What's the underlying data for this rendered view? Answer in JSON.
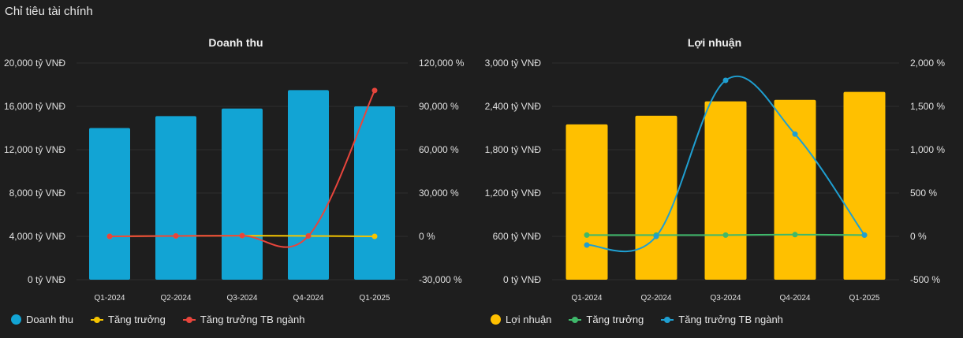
{
  "page": {
    "title": "Chỉ tiêu tài chính"
  },
  "charts": [
    {
      "title": "Doanh thu",
      "legend": [
        {
          "label": "Doanh thu",
          "kind": "dot",
          "color": "#12a4d4"
        },
        {
          "label": "Tăng trưởng",
          "kind": "line",
          "color": "#f5c400"
        },
        {
          "label": "Tăng trưởng TB ngành",
          "kind": "line",
          "color": "#e8453c"
        }
      ]
    },
    {
      "title": "Lợi nhuận",
      "legend": [
        {
          "label": "Lợi nhuận",
          "kind": "dot",
          "color": "#ffc000"
        },
        {
          "label": "Tăng trưởng",
          "kind": "line",
          "color": "#3fb86b"
        },
        {
          "label": "Tăng trưởng TB ngành",
          "kind": "line",
          "color": "#1f9fd1"
        }
      ]
    }
  ],
  "chart_data": [
    {
      "type": "bar",
      "title": "Doanh thu",
      "categories": [
        "Q1-2024",
        "Q2-2024",
        "Q3-2024",
        "Q4-2024",
        "Q1-2025"
      ],
      "bar_series": {
        "name": "Doanh thu",
        "color": "#12a4d4",
        "values": [
          14000,
          15100,
          15800,
          17500,
          16000
        ]
      },
      "line_series": [
        {
          "name": "Tăng trưởng",
          "color": "#f5c400",
          "values": [
            0,
            300,
            500,
            300,
            0
          ]
        },
        {
          "name": "Tăng trưởng TB ngành",
          "color": "#e8453c",
          "values": [
            0,
            300,
            500,
            300,
            101000
          ]
        }
      ],
      "y_left": {
        "min": 0,
        "max": 20000,
        "ticks": [
          0,
          4000,
          8000,
          12000,
          16000,
          20000
        ],
        "tick_labels": [
          "0 tỷ VNĐ",
          "4,000 tỷ VNĐ",
          "8,000 tỷ VNĐ",
          "12,000 tỷ VNĐ",
          "16,000 tỷ VNĐ",
          "20,000 tỷ VNĐ"
        ]
      },
      "y_right": {
        "min": -30000,
        "max": 120000,
        "ticks": [
          -30000,
          0,
          30000,
          60000,
          90000,
          120000
        ],
        "tick_labels": [
          "-30,000 %",
          "0 %",
          "30,000 %",
          "60,000 %",
          "90,000 %",
          "120,000 %"
        ]
      },
      "grid": true,
      "legend_position": "bottom"
    },
    {
      "type": "bar",
      "title": "Lợi nhuận",
      "categories": [
        "Q1-2024",
        "Q2-2024",
        "Q3-2024",
        "Q4-2024",
        "Q1-2025"
      ],
      "bar_series": {
        "name": "Lợi nhuận",
        "color": "#ffc000",
        "values": [
          2150,
          2270,
          2470,
          2490,
          2600
        ]
      },
      "line_series": [
        {
          "name": "Tăng trưởng",
          "color": "#3fb86b",
          "values": [
            15,
            15,
            15,
            20,
            15
          ]
        },
        {
          "name": "Tăng trưởng TB ngành",
          "color": "#1f9fd1",
          "values": [
            -100,
            0,
            1800,
            1180,
            15
          ]
        }
      ],
      "y_left": {
        "min": 0,
        "max": 3000,
        "ticks": [
          0,
          600,
          1200,
          1800,
          2400,
          3000
        ],
        "tick_labels": [
          "0 tỷ VNĐ",
          "600 tỷ VNĐ",
          "1,200 tỷ VNĐ",
          "1,800 tỷ VNĐ",
          "2,400 tỷ VNĐ",
          "3,000 tỷ VNĐ"
        ]
      },
      "y_right": {
        "min": -500,
        "max": 2000,
        "ticks": [
          -500,
          0,
          500,
          1000,
          1500,
          2000
        ],
        "tick_labels": [
          "-500 %",
          "0 %",
          "500 %",
          "1,000 %",
          "1,500 %",
          "2,000 %"
        ]
      },
      "grid": true,
      "legend_position": "bottom"
    }
  ]
}
